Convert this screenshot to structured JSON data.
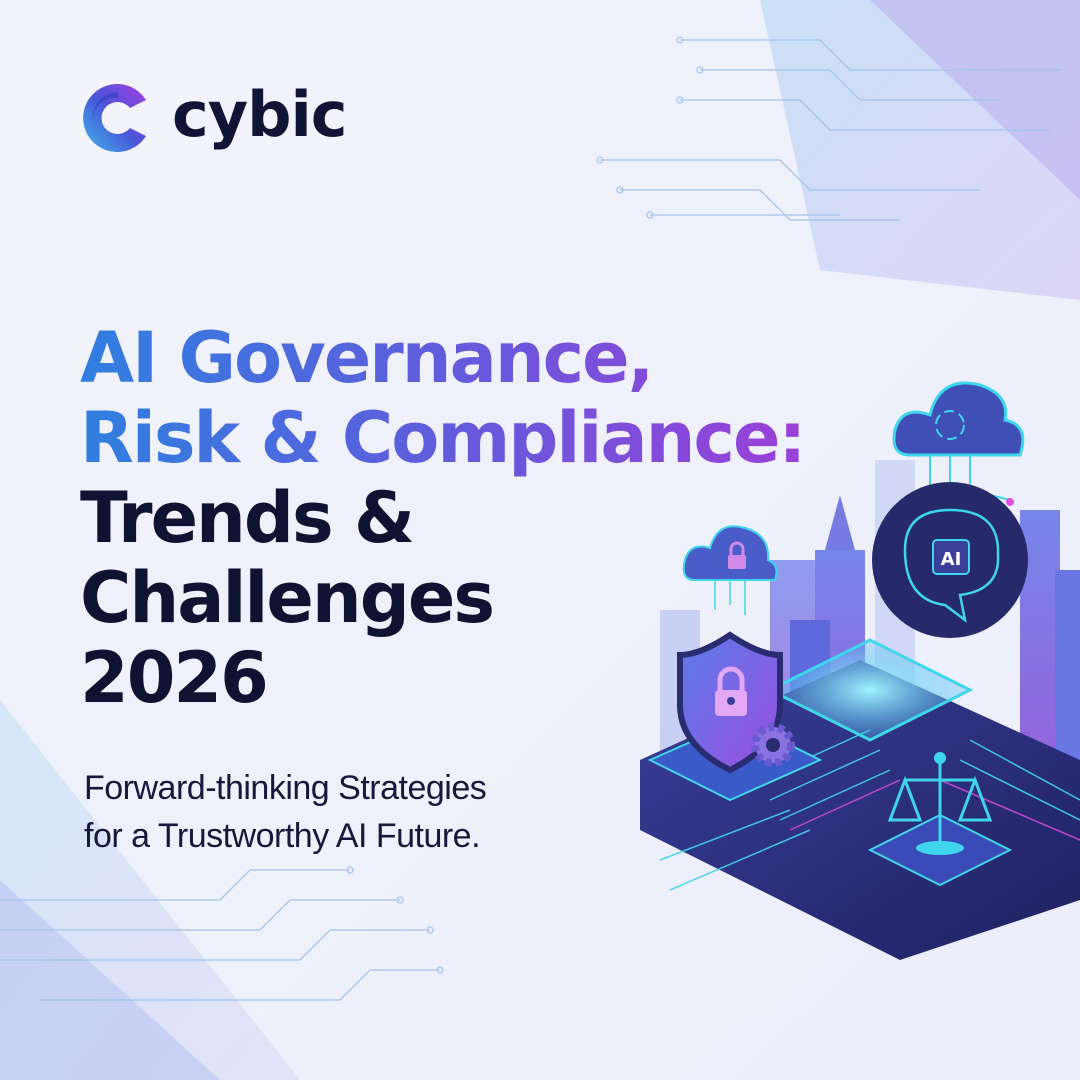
{
  "brand": {
    "name": "cybic",
    "logo_icon": "c-logo-mark",
    "gradient": [
      "#3fb8ea",
      "#4a55d8",
      "#a23fe0"
    ]
  },
  "headline": {
    "lines_gradient": [
      "AI Governance,",
      "Risk & Compliance:"
    ],
    "lines_dark": [
      "Trends &",
      "Challenges",
      "2026"
    ]
  },
  "subtitle": {
    "lines": [
      "Forward-thinking Strategies",
      "for a Trustworthy AI Future."
    ]
  },
  "illustration": {
    "brain_label": "AI",
    "icons": [
      "cloud-lock-icon",
      "cloud-sync-icon",
      "brain-chip-icon",
      "shield-lock-icon",
      "gear-icon",
      "scales-icon",
      "city-skyline",
      "circuit-board"
    ]
  },
  "colors": {
    "text_dark": "#101232",
    "accent_blue": "#2f7fe0",
    "accent_purple": "#9a3fd8",
    "cyan": "#35e0f0",
    "navy": "#23265e"
  }
}
